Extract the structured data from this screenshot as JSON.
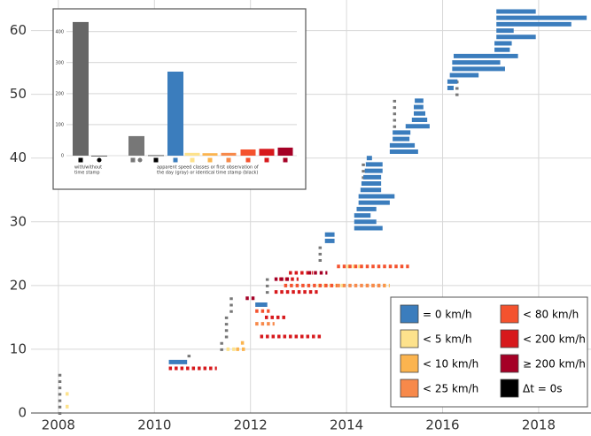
{
  "chart_data": {
    "type": "timeline",
    "xlim": [
      2007.43,
      2019.09
    ],
    "ylim": [
      0,
      64.8
    ],
    "xticks": [
      2008,
      2010,
      2012,
      2014,
      2016,
      2018
    ],
    "yticks": [
      0,
      10,
      20,
      30,
      40,
      50,
      60
    ],
    "grid": true,
    "legend": "lower right",
    "series": [
      {
        "name": "= 0 km/h",
        "color": "#3b7dbd",
        "x": [
          2010.3,
          2012.1,
          2013.55,
          2013.55,
          2014.16,
          2014.16,
          2014.16,
          2014.21,
          2014.25,
          2014.25,
          2014.29,
          2014.31,
          2014.35,
          2014.38,
          2014.4,
          2014.42,
          2014.9,
          2014.9,
          2014.96,
          2014.96,
          2015.23,
          2015.36,
          2015.4,
          2015.4,
          2015.42,
          2016.1,
          2016.1,
          2016.15,
          2016.2,
          2016.2,
          2016.23,
          2017.08,
          2017.08,
          2017.12,
          2017.12,
          2017.12,
          2017.12,
          2017.12
        ],
        "x2": [
          2010.68,
          2012.35,
          2013.75,
          2013.75,
          2014.75,
          2014.62,
          2014.5,
          2014.62,
          2014.9,
          2015.0,
          2014.72,
          2014.72,
          2014.72,
          2014.75,
          2014.75,
          2014.53,
          2015.49,
          2015.42,
          2015.31,
          2015.33,
          2015.73,
          2015.68,
          2015.64,
          2015.6,
          2015.6,
          2016.23,
          2016.31,
          2016.75,
          2017.3,
          2017.2,
          2017.57,
          2017.4,
          2017.44,
          2017.94,
          2017.48,
          2018.68,
          2019.0,
          2017.94
        ],
        "values": [
          8,
          17,
          27,
          28,
          29,
          30,
          31,
          32,
          33,
          34,
          35,
          36,
          37,
          38,
          39,
          40,
          41,
          42,
          43,
          44,
          45,
          46,
          47,
          48,
          49,
          51,
          52,
          53,
          54,
          55,
          56,
          57,
          58,
          59,
          60,
          61,
          62,
          63
        ]
      },
      {
        "name": "< 5 km/h",
        "color": "#fde28c",
        "x": [
          2008.15,
          2008.15,
          2011.5,
          2013.4,
          2014.0
        ],
        "x2": [
          2008.2,
          2008.2,
          2011.7,
          2014.0,
          2014.3
        ],
        "values": [
          1,
          3,
          10,
          20,
          23
        ]
      },
      {
        "name": "< 10 km/h",
        "color": "#fbb44f",
        "x": [
          2011.7,
          2011.8,
          2014.4
        ],
        "x2": [
          2011.9,
          2011.9,
          2014.9
        ],
        "values": [
          10,
          11,
          20
        ]
      },
      {
        "name": "< 25 km/h",
        "color": "#f7894a",
        "x": [
          2012.1,
          2013.8
        ],
        "x2": [
          2012.5,
          2014.8
        ],
        "values": [
          14,
          20
        ]
      },
      {
        "name": "< 80 km/h",
        "color": "#f4522e",
        "x": [
          2012.1,
          2012.7,
          2013.8
        ],
        "x2": [
          2012.4,
          2013.8,
          2015.3
        ],
        "values": [
          16,
          20,
          23
        ]
      },
      {
        "name": "< 200 km/h",
        "color": "#d7191c",
        "x": [
          2010.3,
          2012.2,
          2012.3,
          2012.5,
          2012.6,
          2012.8
        ],
        "x2": [
          2011.3,
          2013.5,
          2012.75,
          2013.4,
          2013.0,
          2013.3
        ],
        "values": [
          7,
          12,
          15,
          19,
          21,
          22
        ]
      },
      {
        "name": "≥ 200 km/h",
        "color": "#a50026",
        "x": [
          2011.9,
          2012.5,
          2013.2
        ],
        "x2": [
          2012.1,
          2012.8,
          2013.6
        ],
        "values": [
          18,
          21,
          22
        ]
      },
      {
        "name": "Δt = 0s",
        "color": "#000000",
        "x": [],
        "x2": [],
        "values": []
      }
    ],
    "gray_columns": {
      "color": "#777777",
      "x": [
        2008.03,
        2010.72,
        2011.4,
        2011.5,
        2011.6,
        2012.35,
        2013.45,
        2013.6,
        2014.35,
        2015.0,
        2016.3,
        2017.3
      ],
      "low": [
        0,
        9,
        10,
        12,
        16,
        19,
        24,
        27,
        29,
        41,
        50,
        57
      ],
      "high": [
        6,
        9,
        11,
        15,
        18,
        21,
        26,
        28,
        39,
        49,
        52,
        62
      ]
    },
    "inset": {
      "type": "bar",
      "ylim": [
        0,
        445
      ],
      "yticks": [
        0,
        100,
        200,
        300,
        400
      ],
      "values": [
        431,
        0,
        63,
        1,
        271,
        9,
        8,
        9,
        20,
        22,
        26
      ],
      "colors": [
        "#666666",
        "#000000",
        "#777777",
        "#000000",
        "#3b7dbd",
        "#fde28c",
        "#fbb44f",
        "#f7894a",
        "#f4522e",
        "#d7191c",
        "#a50026"
      ],
      "group_labels": [
        [
          "with/without",
          "time stamp"
        ],
        [
          "apparent speed classes or first observation of",
          "the day (gray) or identical time stamp (black)"
        ]
      ]
    }
  }
}
